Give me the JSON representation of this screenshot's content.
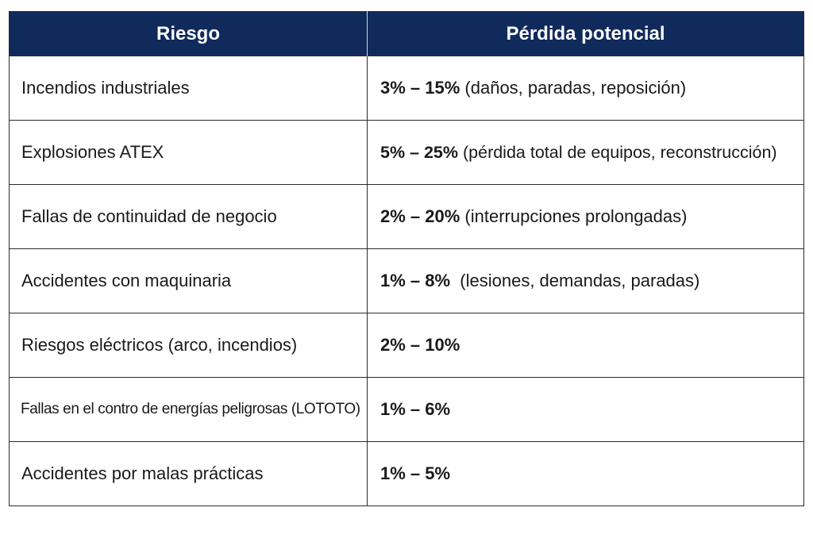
{
  "table": {
    "headers": {
      "risk": "Riesgo",
      "loss": "Pérdida potencial"
    },
    "rows": [
      {
        "risk": "Incendios industriales",
        "range": "3% – 15%",
        "detail": " (daños, paradas, reposición)"
      },
      {
        "risk": "Explosiones ATEX",
        "range": "5% – 25%",
        "detail": " (pérdida total de equipos, reconstrucción)"
      },
      {
        "risk": "Fallas de continuidad de negocio",
        "range": "2% – 20%",
        "detail": " (interrupciones prolongadas)"
      },
      {
        "risk": "Accidentes con maquinaria",
        "range": "1% – 8%",
        "detail": "  (lesiones, demandas, paradas)"
      },
      {
        "risk": "Riesgos eléctricos (arco, incendios)",
        "range": "2% – 10%",
        "detail": ""
      },
      {
        "risk": "Fallas en el contro de energías peligrosas (LOTOTO)",
        "range": "1% – 6%",
        "detail": ""
      },
      {
        "risk": "Accidentes por malas prácticas",
        "range": "1% – 5%",
        "detail": ""
      }
    ]
  },
  "colors": {
    "header_background": "#102a5c",
    "header_text": "#ffffff",
    "border": "#2b2b2b"
  }
}
